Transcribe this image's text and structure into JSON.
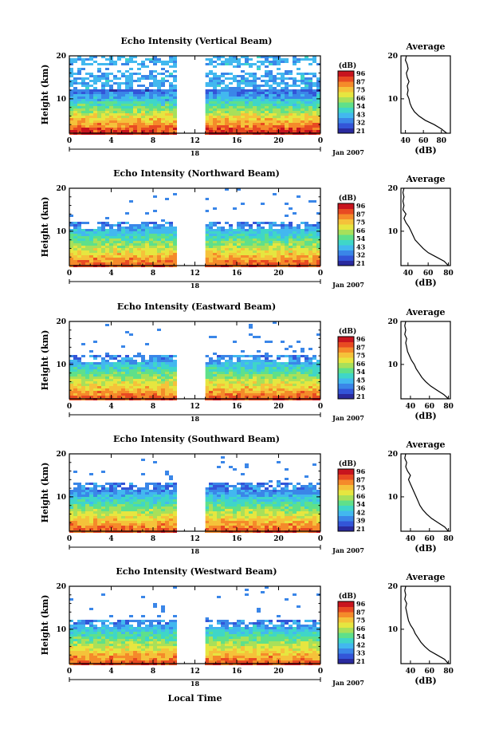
{
  "figure": {
    "xlabel": "Local Time",
    "date_label": "Jan 2007",
    "colorbar_unit": "(dB)",
    "colorbar_ticks": [
      [
        "96",
        "87",
        "75",
        "66",
        "54",
        "43",
        "32",
        "21"
      ],
      [
        "96",
        "87",
        "75",
        "66",
        "54",
        "43",
        "32",
        "21"
      ],
      [
        "96",
        "87",
        "75",
        "66",
        "54",
        "45",
        "36",
        "21"
      ],
      [
        "96",
        "87",
        "75",
        "66",
        "54",
        "42",
        "39",
        "21"
      ],
      [
        "96",
        "87",
        "75",
        "66",
        "54",
        "42",
        "33",
        "21"
      ]
    ],
    "colormap": [
      "#2a2a9e",
      "#3355d8",
      "#3a86e8",
      "#42b8ef",
      "#3fd6c8",
      "#5fe08a",
      "#a8e05a",
      "#e6e640",
      "#f5c23a",
      "#f58a2a",
      "#e84a22",
      "#c8141e"
    ]
  },
  "chart_data": [
    {
      "type": "heatmap",
      "title": "Echo Intensity (Vertical Beam)",
      "ylabel": "Height (km)",
      "xlim": [
        0,
        24
      ],
      "x_ticks": [
        "0",
        "4",
        "8",
        "12",
        "16",
        "20",
        "0"
      ],
      "day_label": "18",
      "ylim": [
        2,
        20
      ],
      "y_ticks": [
        "20",
        "10"
      ],
      "gap": [
        10.3,
        13.0
      ],
      "profile": {
        "title": "Average",
        "xlabel": "(dB)",
        "xlim": [
          35,
          90
        ],
        "x_ticks": [
          "40",
          "60",
          "80"
        ],
        "ylim": [
          2,
          20
        ],
        "y_ticks": [
          "20",
          "10"
        ],
        "height": [
          2,
          3,
          4,
          5,
          6,
          7,
          8,
          9,
          10,
          11,
          12,
          13,
          14,
          15,
          16,
          17,
          18,
          19,
          20
        ],
        "value": [
          86,
          80,
          72,
          62,
          55,
          50,
          47,
          45,
          44,
          42,
          43,
          42,
          44,
          42,
          41,
          43,
          42,
          40,
          41
        ]
      }
    },
    {
      "type": "heatmap",
      "title": "Echo Intensity (Northward Beam)",
      "ylabel": "Height (km)",
      "xlim": [
        0,
        24
      ],
      "x_ticks": [
        "0",
        "4",
        "8",
        "12",
        "16",
        "20",
        "0"
      ],
      "day_label": "18",
      "ylim": [
        2,
        20
      ],
      "y_ticks": [
        "20",
        "10"
      ],
      "gap": [
        10.3,
        13.0
      ],
      "profile": {
        "title": "Average",
        "xlabel": "(dB)",
        "xlim": [
          33,
          82
        ],
        "x_ticks": [
          "40",
          "60",
          "80"
        ],
        "ylim": [
          2,
          20
        ],
        "y_ticks": [
          "20",
          "10"
        ],
        "height": [
          2,
          3,
          4,
          5,
          6,
          7,
          8,
          9,
          10,
          11,
          12,
          13,
          14,
          15,
          16,
          17,
          18,
          19,
          20
        ],
        "value": [
          80,
          76,
          68,
          60,
          55,
          51,
          47,
          45,
          43,
          41,
          38,
          36,
          38,
          35,
          36,
          35,
          36,
          35,
          36
        ]
      }
    },
    {
      "type": "heatmap",
      "title": "Echo Intensity (Eastward Beam)",
      "ylabel": "Height (km)",
      "xlim": [
        0,
        24
      ],
      "x_ticks": [
        "0",
        "4",
        "8",
        "12",
        "16",
        "20",
        "0"
      ],
      "day_label": "18",
      "ylim": [
        2,
        20
      ],
      "y_ticks": [
        "20",
        "10"
      ],
      "gap": [
        10.3,
        13.0
      ],
      "profile": {
        "title": "Average",
        "xlabel": "(dB)",
        "xlim": [
          30,
          82
        ],
        "x_ticks": [
          "40",
          "60",
          "80"
        ],
        "ylim": [
          2,
          20
        ],
        "y_ticks": [
          "20",
          "10"
        ],
        "height": [
          2,
          3,
          4,
          5,
          6,
          7,
          8,
          9,
          10,
          11,
          12,
          13,
          14,
          15,
          16,
          17,
          18,
          19,
          20
        ],
        "value": [
          80,
          75,
          68,
          61,
          56,
          52,
          49,
          46,
          44,
          41,
          39,
          37,
          36,
          35,
          36,
          34,
          35,
          34,
          35
        ]
      }
    },
    {
      "type": "heatmap",
      "title": "Echo Intensity (Southward Beam)",
      "ylabel": "Height (km)",
      "xlim": [
        0,
        24
      ],
      "x_ticks": [
        "0",
        "4",
        "8",
        "12",
        "16",
        "20",
        "0"
      ],
      "day_label": "18",
      "ylim": [
        2,
        20
      ],
      "y_ticks": [
        "20",
        "10"
      ],
      "gap": [
        10.3,
        13.0
      ],
      "profile": {
        "title": "Average",
        "xlabel": "(dB)",
        "xlim": [
          30,
          82
        ],
        "x_ticks": [
          "40",
          "60",
          "80"
        ],
        "ylim": [
          2,
          20
        ],
        "y_ticks": [
          "20",
          "10"
        ],
        "height": [
          2,
          3,
          4,
          5,
          6,
          7,
          8,
          9,
          10,
          11,
          12,
          13,
          14,
          15,
          16,
          17,
          18,
          19,
          20
        ],
        "value": [
          80,
          76,
          69,
          62,
          57,
          53,
          50,
          48,
          46,
          44,
          42,
          40,
          38,
          40,
          37,
          35,
          36,
          34,
          35
        ]
      }
    },
    {
      "type": "heatmap",
      "title": "Echo Intensity (Westward Beam)",
      "ylabel": "Height (km)",
      "xlim": [
        0,
        24
      ],
      "x_ticks": [
        "0",
        "4",
        "8",
        "12",
        "16",
        "20",
        "0"
      ],
      "day_label": "18",
      "ylim": [
        2,
        20
      ],
      "y_ticks": [
        "20",
        "10"
      ],
      "gap": [
        10.3,
        13.0
      ],
      "profile": {
        "title": "Average",
        "xlabel": "(dB)",
        "xlim": [
          30,
          82
        ],
        "x_ticks": [
          "40",
          "60",
          "80"
        ],
        "ylim": [
          2,
          20
        ],
        "y_ticks": [
          "20",
          "10"
        ],
        "height": [
          2,
          3,
          4,
          5,
          6,
          7,
          8,
          9,
          10,
          11,
          12,
          13,
          14,
          15,
          16,
          17,
          18,
          19,
          20
        ],
        "value": [
          80,
          76,
          68,
          60,
          55,
          51,
          48,
          45,
          43,
          40,
          38,
          37,
          36,
          35,
          36,
          34,
          35,
          34,
          35
        ]
      }
    }
  ]
}
